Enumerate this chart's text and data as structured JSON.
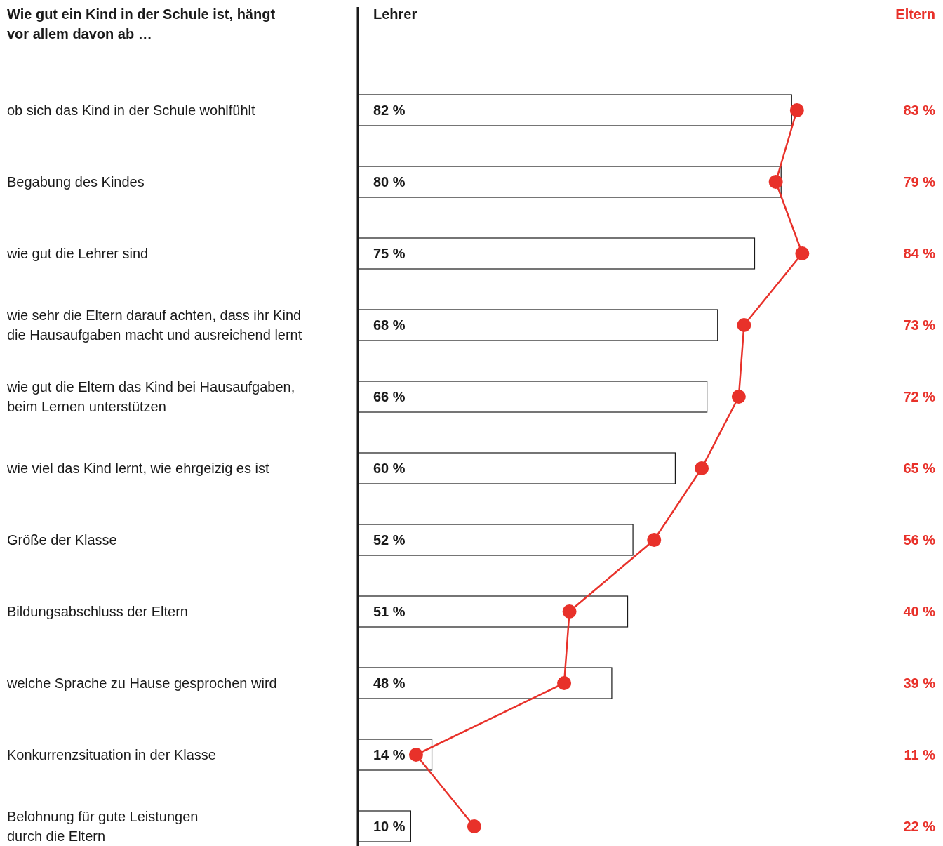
{
  "chart_data": {
    "type": "bar",
    "orientation": "horizontal",
    "title": "Wie gut ein Kind in der Schule ist, hängt\nvor allem davon ab …",
    "categories": [
      "ob sich das Kind in der Schule wohlfühlt",
      "Begabung des Kindes",
      "wie gut die Lehrer sind",
      "wie sehr die Eltern darauf achten, dass ihr Kind\ndie Hausaufgaben macht und ausreichend lernt",
      "wie gut die Eltern das Kind bei Hausaufgaben,\nbeim Lernen unterstützen",
      "wie viel das Kind lernt, wie ehrgeizig es ist",
      "Größe der Klasse",
      "Bildungsabschluss der Eltern",
      "welche Sprache zu Hause gesprochen wird",
      "Konkurrenzsituation in der Klasse",
      "Belohnung für gute Leistungen\ndurch die Eltern"
    ],
    "series": [
      {
        "name": "Lehrer",
        "color": "#ffffff",
        "values": [
          82,
          80,
          75,
          68,
          66,
          60,
          52,
          51,
          48,
          14,
          10
        ],
        "value_labels": [
          "82 %",
          "80 %",
          "75 %",
          "68 %",
          "66 %",
          "60 %",
          "52 %",
          "51 %",
          "48 %",
          "14 %",
          "10 %"
        ]
      },
      {
        "name": "Eltern",
        "type": "line",
        "color": "#e8312a",
        "marker": "circle",
        "values": [
          83,
          79,
          84,
          73,
          72,
          65,
          56,
          40,
          39,
          11,
          22
        ],
        "value_labels": [
          "83 %",
          "79 %",
          "84 %",
          "73 %",
          "72 %",
          "65 %",
          "56 %",
          "40 %",
          "39 %",
          "11 %",
          "22 %"
        ]
      }
    ],
    "tick_labels": false
  }
}
